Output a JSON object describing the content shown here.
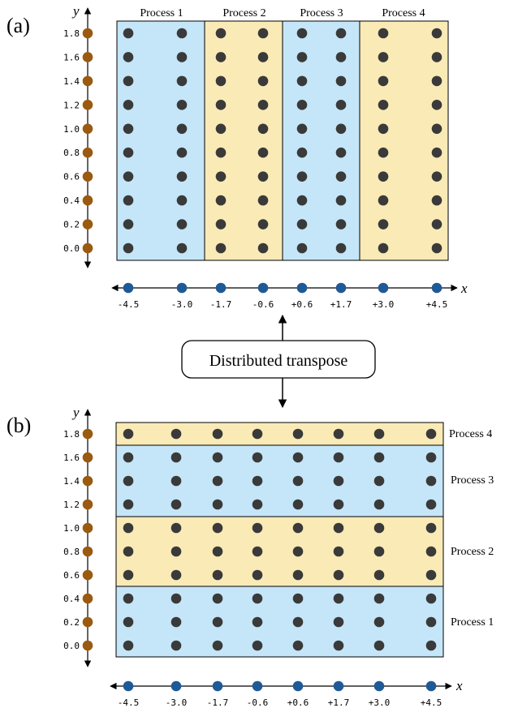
{
  "panel_a": {
    "label": "(a)",
    "x_axis_label": "x",
    "y_axis_label": "y",
    "process_labels": [
      "Process 1",
      "Process 2",
      "Process 3",
      "Process 4"
    ],
    "y_ticks": [
      "0.0",
      "0.2",
      "0.4",
      "0.6",
      "0.8",
      "1.0",
      "1.2",
      "1.4",
      "1.6",
      "1.8"
    ],
    "x_ticks": [
      "-4.5",
      "-3.0",
      "-1.7",
      "-0.6",
      "+0.6",
      "+1.7",
      "+3.0",
      "+4.5"
    ]
  },
  "panel_b": {
    "label": "(b)",
    "x_axis_label": "x",
    "y_axis_label": "y",
    "process_labels": [
      "Process 4",
      "Process 3",
      "Process 2",
      "Process 1"
    ],
    "y_ticks": [
      "0.0",
      "0.2",
      "0.4",
      "0.6",
      "0.8",
      "1.0",
      "1.2",
      "1.4",
      "1.6",
      "1.8"
    ],
    "x_ticks": [
      "-4.5",
      "-3.0",
      "-1.7",
      "-0.6",
      "+0.6",
      "+1.7",
      "+3.0",
      "+4.5"
    ]
  },
  "transpose_label": "Distributed transpose",
  "colors": {
    "blue_band": "#c4e6f8",
    "yellow_band": "#faeab6",
    "grid_point": "#3a3a3a",
    "x_axis_point": "#1f5a96",
    "y_axis_point": "#9a5a10",
    "axis_line": "#000000"
  }
}
